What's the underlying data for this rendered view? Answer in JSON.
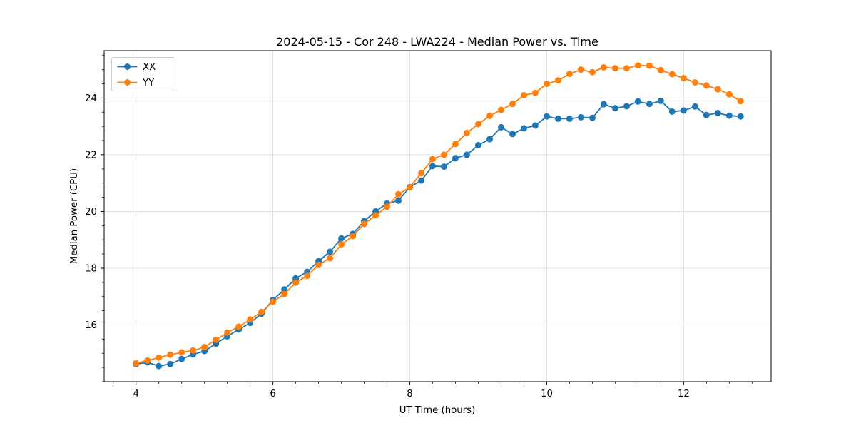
{
  "chart_data": {
    "type": "line",
    "title": "2024-05-15 - Cor 248 - LWA224 - Median Power vs. Time",
    "xlabel": "UT Time (hours)",
    "ylabel": "Median Power (CPU)",
    "xlim": [
      3.534,
      13.278
    ],
    "ylim": [
      14.0,
      25.67
    ],
    "xticks": [
      4,
      6,
      8,
      10,
      12
    ],
    "yticks": [
      16,
      18,
      20,
      22,
      24
    ],
    "x_minor_step": 0.33333,
    "y_minor_step": 0.5,
    "grid": true,
    "legend_position": "upper-left",
    "x": [
      4.0,
      4.167,
      4.333,
      4.5,
      4.667,
      4.833,
      5.0,
      5.167,
      5.333,
      5.5,
      5.667,
      5.833,
      6.0,
      6.167,
      6.333,
      6.5,
      6.667,
      6.833,
      7.0,
      7.167,
      7.333,
      7.5,
      7.667,
      7.833,
      8.0,
      8.167,
      8.333,
      8.5,
      8.667,
      8.833,
      9.0,
      9.167,
      9.333,
      9.5,
      9.667,
      9.833,
      10.0,
      10.167,
      10.333,
      10.5,
      10.667,
      10.833,
      11.0,
      11.167,
      11.333,
      11.5,
      11.667,
      11.833,
      12.0,
      12.167,
      12.333,
      12.5,
      12.667,
      12.833
    ],
    "series": [
      {
        "name": "XX",
        "color": "#1f77b4",
        "values": [
          14.62,
          14.68,
          14.55,
          14.62,
          14.8,
          14.96,
          15.08,
          15.34,
          15.6,
          15.84,
          16.07,
          16.4,
          16.88,
          17.25,
          17.64,
          17.87,
          18.25,
          18.58,
          19.05,
          19.21,
          19.66,
          20.0,
          20.28,
          20.38,
          20.86,
          21.09,
          21.6,
          21.58,
          21.88,
          22.0,
          22.34,
          22.55,
          22.97,
          22.73,
          22.93,
          23.03,
          23.35,
          23.27,
          23.27,
          23.32,
          23.3,
          23.78,
          23.64,
          23.71,
          23.88,
          23.79,
          23.9,
          23.52,
          23.56,
          23.7,
          23.4,
          23.47,
          23.38,
          23.35
        ]
      },
      {
        "name": "YY",
        "color": "#ff7f0e",
        "values": [
          14.65,
          14.75,
          14.85,
          14.95,
          15.03,
          15.1,
          15.22,
          15.48,
          15.73,
          15.94,
          16.19,
          16.46,
          16.82,
          17.09,
          17.49,
          17.73,
          18.12,
          18.35,
          18.84,
          19.13,
          19.56,
          19.86,
          20.17,
          20.61,
          20.85,
          21.35,
          21.85,
          22.0,
          22.38,
          22.77,
          23.08,
          23.37,
          23.58,
          23.79,
          24.1,
          24.18,
          24.5,
          24.62,
          24.85,
          25.0,
          24.91,
          25.08,
          25.05,
          25.05,
          25.15,
          25.14,
          24.98,
          24.84,
          24.7,
          24.55,
          24.44,
          24.31,
          24.13,
          23.89
        ]
      }
    ],
    "colors": {
      "grid": "#e0e0e0",
      "spine": "#000000",
      "background": "#ffffff"
    }
  }
}
